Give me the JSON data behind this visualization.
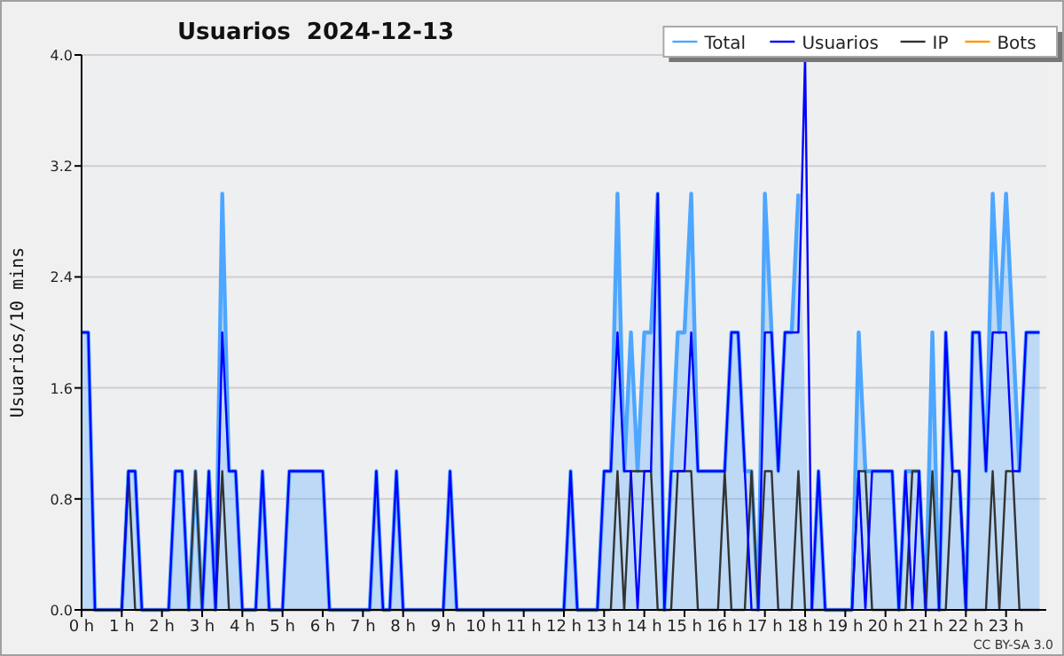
{
  "chart_data": {
    "type": "line",
    "title": "Usuarios  2024-12-13",
    "ylabel": "Usuarios/10 mins",
    "x": [
      0,
      0.167,
      0.333,
      0.5,
      0.667,
      0.833,
      1,
      1.167,
      1.333,
      1.5,
      1.667,
      1.833,
      2,
      2.167,
      2.333,
      2.5,
      2.667,
      2.833,
      3,
      3.167,
      3.333,
      3.5,
      3.667,
      3.833,
      4,
      4.167,
      4.333,
      4.5,
      4.667,
      4.833,
      5,
      5.167,
      5.333,
      5.5,
      5.667,
      5.833,
      6,
      6.167,
      6.333,
      6.5,
      6.667,
      6.833,
      7,
      7.167,
      7.333,
      7.5,
      7.667,
      7.833,
      8,
      8.167,
      8.333,
      8.5,
      8.667,
      8.833,
      9,
      9.167,
      9.333,
      9.5,
      9.667,
      9.833,
      10,
      10.167,
      10.333,
      10.5,
      10.667,
      10.833,
      11,
      11.167,
      11.333,
      11.5,
      11.667,
      11.833,
      12,
      12.167,
      12.333,
      12.5,
      12.667,
      12.833,
      13,
      13.167,
      13.333,
      13.5,
      13.667,
      13.833,
      14,
      14.167,
      14.333,
      14.5,
      14.667,
      14.833,
      15,
      15.167,
      15.333,
      15.5,
      15.667,
      15.833,
      16,
      16.167,
      16.333,
      16.5,
      16.667,
      16.833,
      17,
      17.167,
      17.333,
      17.5,
      17.667,
      17.833,
      18,
      18.167,
      18.333,
      18.5,
      18.667,
      18.833,
      19,
      19.167,
      19.333,
      19.5,
      19.667,
      19.833,
      20,
      20.167,
      20.333,
      20.5,
      20.667,
      20.833,
      21,
      21.167,
      21.333,
      21.5,
      21.667,
      21.833,
      22,
      22.167,
      22.333,
      22.5,
      22.667,
      22.833,
      23,
      23.167,
      23.333,
      23.5,
      23.667,
      23.833
    ],
    "series": [
      {
        "name": "Total",
        "type": "area",
        "color": "#4da6ff",
        "values": [
          2,
          2,
          0,
          0,
          0,
          0,
          0,
          1,
          1,
          0,
          0,
          0,
          0,
          0,
          1,
          1,
          0,
          1,
          0,
          1,
          0,
          3,
          1,
          1,
          0,
          0,
          0,
          1,
          0,
          0,
          0,
          1,
          1,
          1,
          1,
          1,
          1,
          0,
          0,
          0,
          0,
          0,
          0,
          0,
          1,
          0,
          0,
          1,
          0,
          0,
          0,
          0,
          0,
          0,
          0,
          1,
          0,
          0,
          0,
          0,
          0,
          0,
          0,
          0,
          0,
          0,
          0,
          0,
          0,
          0,
          0,
          0,
          0,
          1,
          0,
          0,
          0,
          0,
          1,
          1,
          3,
          1,
          2,
          1,
          2,
          2,
          3,
          0,
          1,
          2,
          2,
          3,
          1,
          1,
          1,
          1,
          1,
          2,
          2,
          1,
          1,
          0,
          3,
          2,
          1,
          2,
          2,
          3,
          null,
          0,
          1,
          0,
          0,
          0,
          0,
          0,
          2,
          1,
          1,
          1,
          1,
          1,
          0,
          1,
          1,
          1,
          0,
          2,
          0,
          2,
          1,
          1,
          0,
          2,
          2,
          1,
          3,
          2,
          3,
          2,
          1,
          2,
          2,
          2
        ]
      },
      {
        "name": "Usuarios",
        "color": "#0000ff",
        "values": [
          2,
          2,
          0,
          0,
          0,
          0,
          0,
          1,
          1,
          0,
          0,
          0,
          0,
          0,
          1,
          1,
          0,
          0,
          0,
          1,
          0,
          2,
          1,
          1,
          0,
          0,
          0,
          1,
          0,
          0,
          0,
          1,
          1,
          1,
          1,
          1,
          1,
          0,
          0,
          0,
          0,
          0,
          0,
          0,
          1,
          0,
          0,
          1,
          0,
          0,
          0,
          0,
          0,
          0,
          0,
          1,
          0,
          0,
          0,
          0,
          0,
          0,
          0,
          0,
          0,
          0,
          0,
          0,
          0,
          0,
          0,
          0,
          0,
          1,
          0,
          0,
          0,
          0,
          1,
          1,
          2,
          1,
          1,
          0,
          1,
          1,
          3,
          0,
          1,
          1,
          1,
          2,
          1,
          1,
          1,
          1,
          1,
          2,
          2,
          1,
          0,
          0,
          2,
          2,
          1,
          2,
          2,
          2,
          4,
          0,
          1,
          0,
          0,
          0,
          0,
          0,
          1,
          0,
          1,
          1,
          1,
          1,
          0,
          1,
          0,
          1,
          0,
          0,
          0,
          2,
          1,
          1,
          0,
          2,
          2,
          1,
          2,
          2,
          2,
          1,
          1,
          2,
          2,
          2
        ]
      },
      {
        "name": "IP",
        "color": "#333333",
        "values": [
          0,
          0,
          0,
          0,
          0,
          0,
          0,
          1,
          0,
          0,
          0,
          0,
          0,
          0,
          0,
          0,
          0,
          1,
          0,
          0,
          0,
          1,
          0,
          0,
          0,
          0,
          0,
          0,
          0,
          0,
          0,
          0,
          0,
          0,
          0,
          0,
          0,
          0,
          0,
          0,
          0,
          0,
          0,
          0,
          0,
          0,
          0,
          0,
          0,
          0,
          0,
          0,
          0,
          0,
          0,
          0,
          0,
          0,
          0,
          0,
          0,
          0,
          0,
          0,
          0,
          0,
          0,
          0,
          0,
          0,
          0,
          0,
          0,
          0,
          0,
          0,
          0,
          0,
          0,
          0,
          1,
          0,
          1,
          1,
          1,
          1,
          0,
          0,
          0,
          1,
          1,
          1,
          0,
          0,
          0,
          0,
          1,
          0,
          0,
          0,
          1,
          0,
          1,
          1,
          0,
          0,
          0,
          1,
          0,
          0,
          0,
          0,
          0,
          0,
          0,
          0,
          1,
          1,
          0,
          0,
          0,
          0,
          0,
          0,
          1,
          1,
          0,
          1,
          0,
          0,
          1,
          1,
          0,
          0,
          0,
          0,
          1,
          0,
          1,
          1,
          0,
          0,
          0,
          0
        ]
      },
      {
        "name": "Bots",
        "color": "#ff9900",
        "values": [
          null,
          null,
          null,
          null,
          null,
          null,
          null,
          null,
          null,
          null,
          null,
          null,
          null,
          null,
          null,
          null,
          null,
          null,
          null,
          null,
          null,
          null,
          null,
          null,
          null,
          null,
          null,
          null,
          null,
          null,
          null,
          null,
          null,
          null,
          null,
          null,
          null,
          null,
          null,
          null,
          null,
          null,
          null,
          null,
          null,
          null,
          null,
          null,
          null,
          null,
          null,
          null,
          null,
          null,
          null,
          null,
          null,
          null,
          null,
          null,
          null,
          null,
          null,
          null,
          null,
          null,
          null,
          null,
          null,
          null,
          null,
          null,
          null,
          null,
          null,
          null,
          null,
          null,
          null,
          null,
          null,
          null,
          null,
          null,
          null,
          null,
          null,
          null,
          null,
          null,
          null,
          null,
          null,
          null,
          null,
          null,
          null,
          null,
          null,
          null,
          null,
          null,
          null,
          null,
          null,
          null,
          null,
          null,
          null,
          null,
          null,
          null,
          null,
          null,
          null,
          null,
          null,
          null,
          null,
          null,
          null,
          null,
          null,
          null,
          null,
          null,
          null,
          null,
          null,
          null,
          null,
          null,
          null,
          null,
          null,
          null,
          null,
          null,
          null,
          null,
          null,
          null,
          null,
          null
        ]
      }
    ],
    "xlim": [
      0,
      24
    ],
    "xticks": [
      {
        "value": 0,
        "label": "0 h"
      },
      {
        "value": 1,
        "label": "1 h"
      },
      {
        "value": 2,
        "label": "2 h"
      },
      {
        "value": 3,
        "label": "3 h"
      },
      {
        "value": 4,
        "label": "4 h"
      },
      {
        "value": 5,
        "label": "5 h"
      },
      {
        "value": 6,
        "label": "6 h"
      },
      {
        "value": 7,
        "label": "7 h"
      },
      {
        "value": 8,
        "label": "8 h"
      },
      {
        "value": 9,
        "label": "9 h"
      },
      {
        "value": 10,
        "label": "10 h"
      },
      {
        "value": 11,
        "label": "11 h"
      },
      {
        "value": 12,
        "label": "12 h"
      },
      {
        "value": 13,
        "label": "13 h"
      },
      {
        "value": 14,
        "label": "14 h"
      },
      {
        "value": 15,
        "label": "15 h"
      },
      {
        "value": 16,
        "label": "16 h"
      },
      {
        "value": 17,
        "label": "17 h"
      },
      {
        "value": 18,
        "label": "18 h"
      },
      {
        "value": 19,
        "label": "19 h"
      },
      {
        "value": 20,
        "label": "20 h"
      },
      {
        "value": 21,
        "label": "21 h"
      },
      {
        "value": 22,
        "label": "22 h"
      },
      {
        "value": 23,
        "label": "23 h"
      }
    ],
    "ylim": [
      0,
      4
    ],
    "yticks": [
      {
        "value": 0,
        "label": "0.0"
      },
      {
        "value": 0.8,
        "label": "0.8"
      },
      {
        "value": 1.6,
        "label": "1.6"
      },
      {
        "value": 2.4,
        "label": "2.4"
      },
      {
        "value": 3.2,
        "label": "3.2"
      },
      {
        "value": 4,
        "label": "4.0"
      }
    ],
    "grid": "y",
    "legend": "top right",
    "marker": "none",
    "line_style": "solid",
    "annotations": [
      "CC BY-SA 3.0"
    ]
  }
}
